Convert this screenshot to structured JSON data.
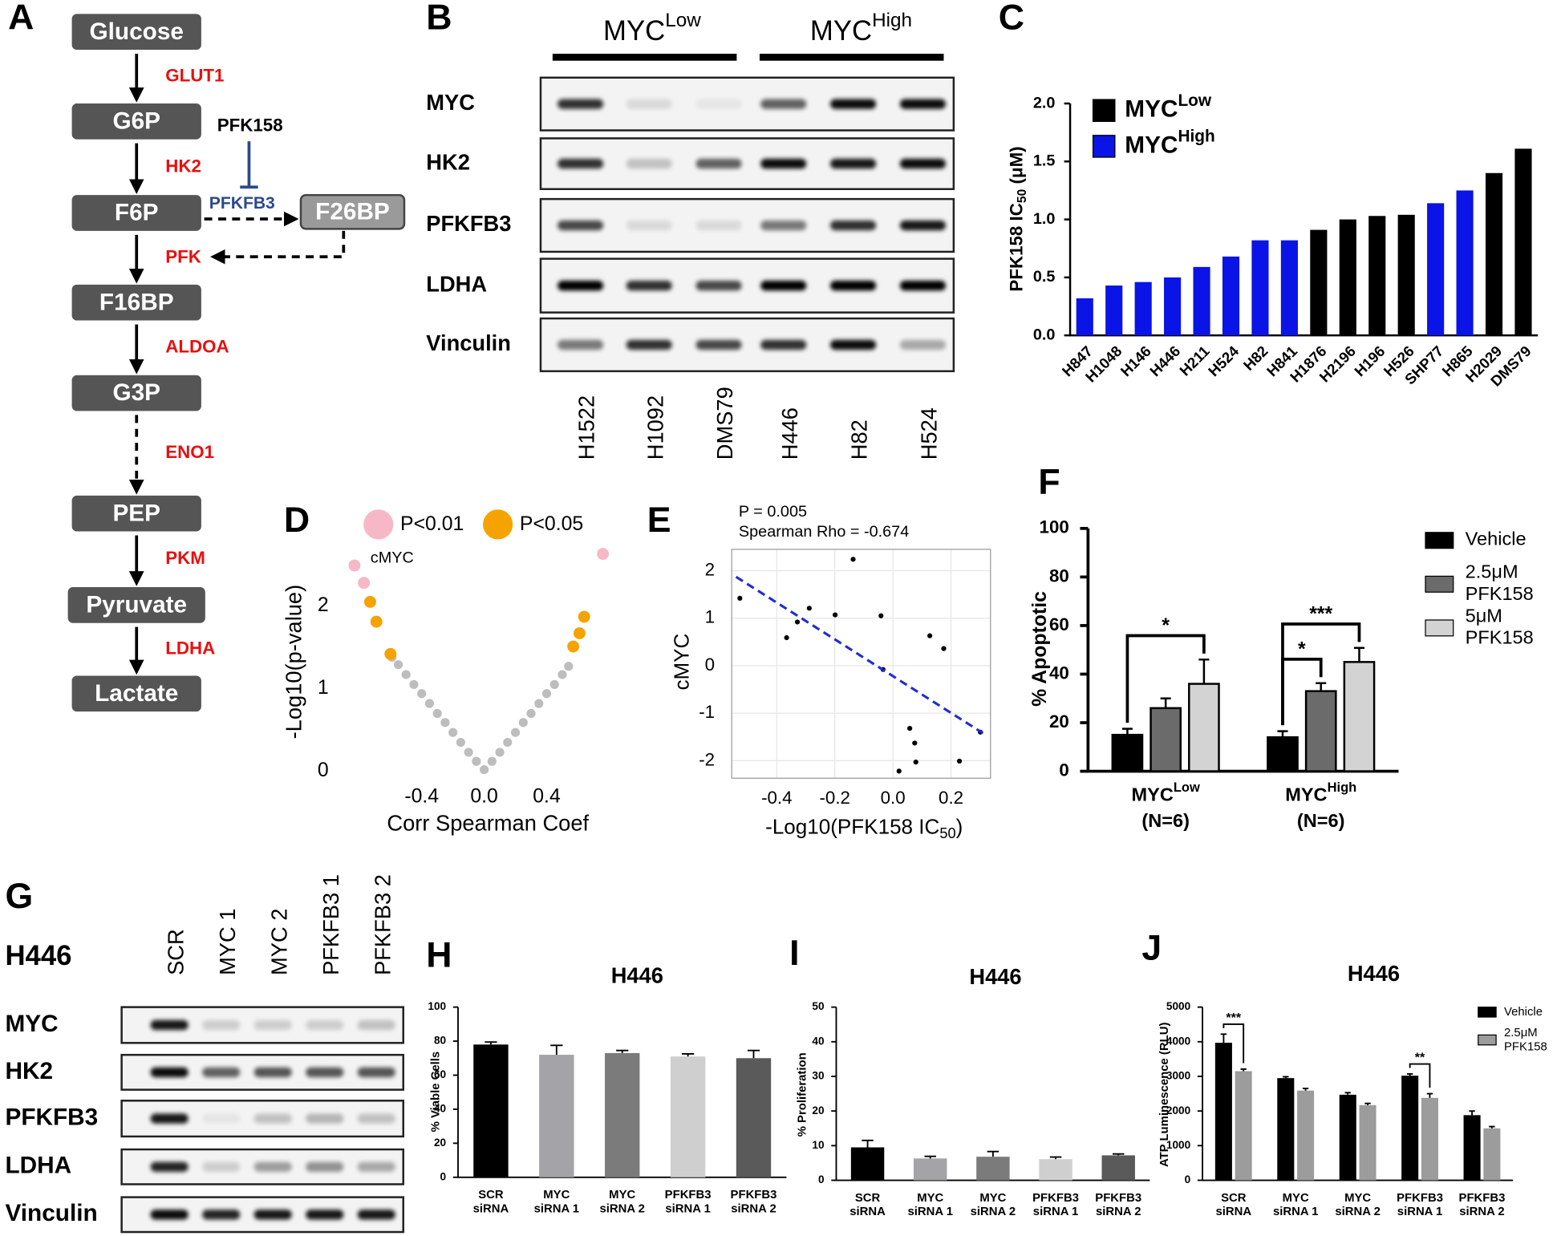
{
  "panel_labels": [
    "A",
    "B",
    "C",
    "D",
    "E",
    "F",
    "G",
    "H",
    "I",
    "J"
  ],
  "pathway": {
    "metabolites": [
      "Glucose",
      "G6P",
      "F6P",
      "F16BP",
      "G3P",
      "PEP",
      "Pyruvate",
      "Lactate"
    ],
    "enzymes": [
      "GLUT1",
      "HK2",
      "PFK",
      "ALDOA",
      "ENO1",
      "PKM",
      "LDHA"
    ],
    "side_product": "F26BP",
    "kinase": "PFKFB3",
    "inhibitor": "PFK158"
  },
  "blot_b": {
    "groups": [
      {
        "text": "MYC",
        "superscript": "Low"
      },
      {
        "text": "MYC",
        "superscript": "High"
      }
    ],
    "proteins": [
      "MYC",
      "HK2",
      "PFKFB3",
      "LDHA",
      "Vinculin"
    ],
    "cell_lines": [
      "H1522",
      "H1092",
      "DMS79",
      "H446",
      "H82",
      "H524"
    ]
  },
  "blot_g": {
    "cell_line": "H446",
    "proteins": [
      "MYC",
      "HK2",
      "PFKFB3",
      "LDHA",
      "Vinculin"
    ],
    "conditions": [
      "SCR",
      "MYC 1",
      "MYC 2",
      "PFKFB3 1",
      "PFKFB3 2"
    ]
  },
  "chart_data": [
    {
      "type": "bar",
      "y_label": {
        "text": "PFK158 IC",
        "subscript": "50",
        "tail": " (μM)"
      },
      "categories": [
        "H847",
        "H1048",
        "H146",
        "H446",
        "H211",
        "H524",
        "H82",
        "H841",
        "H1876",
        "H2196",
        "H196",
        "H526",
        "SHP77",
        "H865",
        "H2029",
        "DMS79"
      ],
      "series": [
        {
          "name": "MYC",
          "superscript": "Low",
          "color": "#000000",
          "values": [
            null,
            null,
            null,
            null,
            null,
            null,
            null,
            null,
            0.91,
            1.0,
            1.03,
            1.04,
            null,
            null,
            1.4,
            1.61
          ]
        },
        {
          "name": "MYC",
          "superscript": "High",
          "color": "#0a14e6",
          "values": [
            0.32,
            0.43,
            0.46,
            0.5,
            0.59,
            0.68,
            0.82,
            0.82,
            null,
            null,
            null,
            null,
            1.14,
            1.25,
            null,
            null
          ]
        }
      ],
      "ylim": [
        0,
        2.0
      ],
      "yticks": [
        {
          "value": 0,
          "label": "0.0"
        },
        {
          "value": 0.5,
          "label": "0.5"
        },
        {
          "value": 1,
          "label": "1.0"
        },
        {
          "value": 1.5,
          "label": "1.5"
        },
        {
          "value": 2,
          "label": "2.0"
        }
      ],
      "legend": "upper left"
    },
    {
      "type": "scatter",
      "x_label": "Corr Spearman Coef",
      "y_label": "-Log10(p-value)",
      "annotation": "cMYC",
      "xlim": [
        -0.9,
        0.82
      ],
      "ylim": [
        -0.12,
        2.77
      ],
      "xticks": [
        -0.4,
        {
          "value": 0,
          "label": "0.0"
        },
        0.4
      ],
      "yticks": [
        0,
        1,
        2
      ],
      "legend": "top",
      "series": [
        {
          "color": "#bdbdbd",
          "x": [
            -0.59,
            -0.55,
            -0.5,
            -0.45,
            -0.4,
            -0.35,
            -0.3,
            -0.25,
            -0.2,
            -0.15,
            -0.1,
            -0.05,
            0,
            0.05,
            0.1,
            0.15,
            0.2,
            0.25,
            0.3,
            0.35,
            0.4,
            0.45,
            0.5,
            0.54
          ],
          "values": [
            1.38,
            1.29,
            1.17,
            1.05,
            0.94,
            0.82,
            0.7,
            0.59,
            0.47,
            0.35,
            0.23,
            0.12,
            0.02,
            0.12,
            0.23,
            0.35,
            0.47,
            0.59,
            0.7,
            0.82,
            0.94,
            1.05,
            1.17,
            1.27
          ]
        },
        {
          "name": "P<0.01",
          "color": "#f6b8c6",
          "x": [
            -0.83,
            -0.77,
            0.76
          ],
          "values": [
            2.49,
            2.28,
            2.63
          ]
        },
        {
          "name": "P<0.05",
          "color": "#f5a300",
          "x": [
            -0.73,
            -0.69,
            -0.6,
            0.64,
            0.61,
            0.57
          ],
          "values": [
            2.05,
            1.81,
            1.42,
            1.87,
            1.67,
            1.51
          ]
        }
      ]
    },
    {
      "type": "scatter",
      "x_label": {
        "text": "-Log10(PFK158 IC",
        "subscript": "50",
        "tail": ")"
      },
      "y_label": "cMYC",
      "annotations": [
        "P = 0.005",
        "Spearman Rho = -0.674"
      ],
      "grid": true,
      "xlim": [
        -0.555,
        0.336
      ],
      "ylim": [
        -2.37,
        2.45
      ],
      "xticks": [
        -0.4,
        -0.2,
        {
          "value": 0,
          "label": "0.0"
        },
        0.2
      ],
      "yticks": [
        2,
        1,
        0,
        -1,
        -2
      ],
      "series": [
        {
          "color": "#000000",
          "x": [
            -0.527,
            -0.366,
            -0.329,
            -0.288,
            -0.199,
            -0.137,
            -0.041,
            -0.034,
            0.127,
            0.175,
            0.058,
            0.075,
            0.079,
            0.021,
            0.229,
            0.301
          ],
          "values": [
            1.42,
            0.59,
            0.92,
            1.21,
            1.07,
            2.24,
            1.05,
            -0.08,
            0.63,
            0.36,
            -1.32,
            -1.63,
            -2.03,
            -2.22,
            -2.01,
            -1.4
          ]
        },
        {
          "type": "line",
          "style": "dashed",
          "color": "#1f2bd6",
          "x": [
            -0.54,
            0.31
          ],
          "values": [
            1.87,
            -1.42
          ]
        }
      ]
    },
    {
      "type": "bar",
      "y_label": "% Apoptotic",
      "categories": [
        {
          "text": "MYC",
          "superscript": "Low",
          "note": "(N=6)"
        },
        {
          "text": "MYC",
          "superscript": "High",
          "note": "(N=6)"
        }
      ],
      "ylim": [
        0,
        100
      ],
      "yticks": [
        0,
        20,
        40,
        60,
        80,
        100
      ],
      "legend": "right",
      "series": [
        {
          "name": "Vehicle",
          "color": "#000000",
          "values": [
            15,
            14
          ],
          "errors": [
            2.5,
            2.5
          ]
        },
        {
          "name": [
            "2.5μM",
            "PFK158"
          ],
          "color": "#6b6b6b",
          "values": [
            26,
            33
          ],
          "errors": [
            4,
            3.3
          ]
        },
        {
          "name": [
            "5μM",
            "PFK158"
          ],
          "color": "#d3d3d3",
          "values": [
            36,
            45
          ],
          "errors": [
            10,
            5.8
          ]
        }
      ],
      "comparisons": [
        {
          "label": "*",
          "category": 0,
          "series": [
            0,
            2
          ]
        },
        {
          "label": "*",
          "category": 1,
          "series": [
            0,
            1
          ]
        },
        {
          "label": "***",
          "category": 1,
          "series": [
            0,
            2
          ]
        }
      ]
    },
    {
      "type": "bar",
      "title": "H446",
      "y_label": "% Viable Cells",
      "categories": [
        [
          "SCR",
          "siRNA"
        ],
        [
          "MYC",
          "siRNA 1"
        ],
        [
          "MYC",
          "siRNA 2"
        ],
        [
          "PFKFB3",
          "siRNA 1"
        ],
        [
          "PFKFB3",
          "siRNA 2"
        ]
      ],
      "ylim": [
        0,
        100
      ],
      "yticks": [
        0,
        20,
        40,
        60,
        80,
        100
      ],
      "series": [
        {
          "colors": [
            "#000000",
            "#a3a3a8",
            "#7b7b7b",
            "#cfcfcf",
            "#5a5a5a"
          ],
          "values": [
            78,
            72,
            73,
            71,
            70
          ],
          "errors": [
            1.5,
            5.5,
            1.5,
            1.5,
            4.5
          ]
        }
      ]
    },
    {
      "type": "bar",
      "title": "H446",
      "y_label": "% Proliferation",
      "categories": [
        [
          "SCR",
          "siRNA"
        ],
        [
          "MYC",
          "siRNA 1"
        ],
        [
          "MYC",
          "siRNA 2"
        ],
        [
          "PFKFB3",
          "siRNA 1"
        ],
        [
          "PFKFB3",
          "siRNA 2"
        ]
      ],
      "ylim": [
        0,
        50
      ],
      "yticks": [
        0,
        10,
        20,
        30,
        40,
        50
      ],
      "series": [
        {
          "colors": [
            "#000000",
            "#a3a3a8",
            "#7b7b7b",
            "#cfcfcf",
            "#5a5a5a"
          ],
          "values": [
            9.5,
            6.3,
            6.8,
            6.1,
            7.2
          ],
          "errors": [
            2,
            0.6,
            1.5,
            0.6,
            0.4
          ]
        }
      ]
    },
    {
      "type": "bar",
      "title": "H446",
      "y_label": "ATP Luminescence (RLU)",
      "categories": [
        [
          "SCR",
          "siRNA"
        ],
        [
          "MYC",
          "siRNA 1"
        ],
        [
          "MYC",
          "siRNA 2"
        ],
        [
          "PFKFB3",
          "siRNA 1"
        ],
        [
          "PFKFB3",
          "siRNA 2"
        ]
      ],
      "ylim": [
        0,
        5000
      ],
      "yticks": [
        0,
        1000,
        2000,
        3000,
        4000,
        5000
      ],
      "legend": "upper right",
      "series": [
        {
          "name": "Vehicle",
          "color": "#000000",
          "values": [
            3970,
            2950,
            2470,
            3020,
            1880
          ],
          "errors": [
            250,
            40,
            60,
            50,
            120
          ]
        },
        {
          "name": [
            "2.5μM",
            "PFK158"
          ],
          "color": "#9c9c9c",
          "values": [
            3150,
            2590,
            2170,
            2380,
            1500
          ],
          "errors": [
            60,
            60,
            50,
            120,
            50
          ]
        }
      ],
      "comparisons": [
        {
          "label": "***",
          "category": 0,
          "series": [
            0,
            1
          ]
        },
        {
          "label": "**",
          "category": 3,
          "series": [
            0,
            1
          ]
        }
      ]
    }
  ]
}
